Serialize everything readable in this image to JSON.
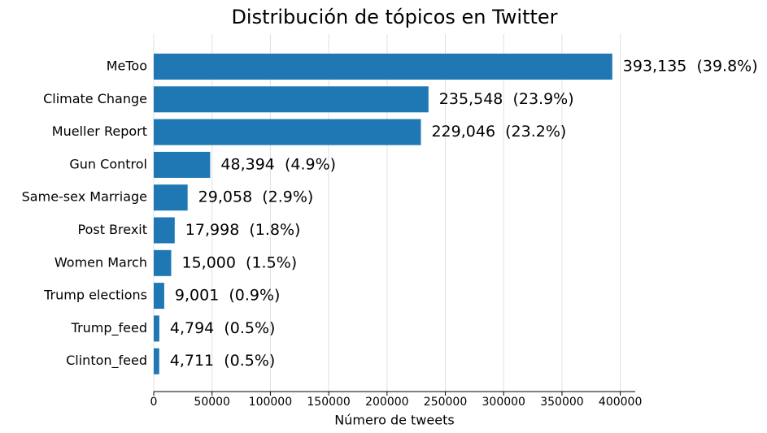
{
  "chart_data": {
    "type": "barh",
    "title": "Distribución de tópicos en Twitter",
    "xlabel": "Número de tweets",
    "categories": [
      "MeToo",
      "Climate Change",
      "Mueller Report",
      "Gun Control",
      "Same-sex Marriage",
      "Post Brexit",
      "Women March",
      "Trump elections",
      "Trump_feed",
      "Clinton_feed"
    ],
    "values": [
      393135,
      235548,
      229046,
      48394,
      29058,
      17998,
      15000,
      9001,
      4794,
      4711
    ],
    "value_labels": [
      "393,135  (39.8%)",
      "235,548  (23.9%)",
      "229,046  (23.2%)",
      "48,394  (4.9%)",
      "29,058  (2.9%)",
      "17,998  (1.8%)",
      "15,000  (1.5%)",
      "9,001  (0.9%)",
      "4,794  (0.5%)",
      "4,711  (0.5%)"
    ],
    "color": "#1f77b4",
    "xlim": [
      0,
      412792
    ],
    "xticks": [
      0,
      50000,
      100000,
      150000,
      200000,
      250000,
      300000,
      350000,
      400000
    ],
    "grid": true
  }
}
